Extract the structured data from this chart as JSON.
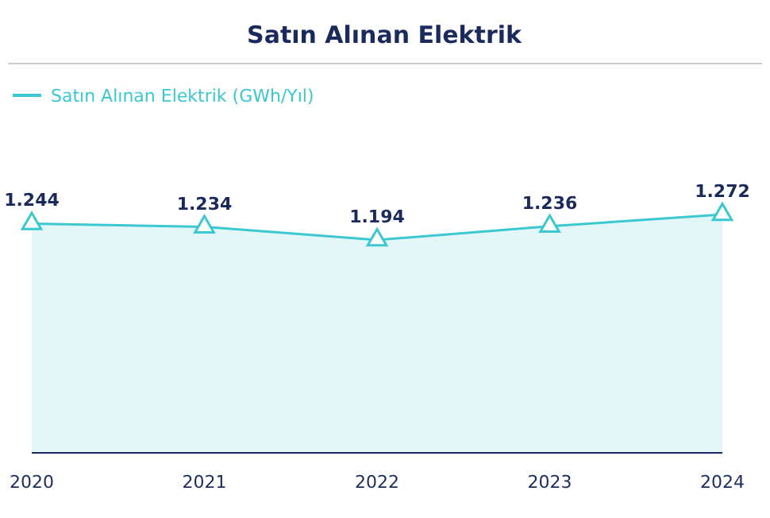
{
  "chart_data": {
    "type": "area",
    "title": "Satın Alınan Elektrik",
    "categories": [
      "2020",
      "2021",
      "2022",
      "2023",
      "2024"
    ],
    "series": [
      {
        "name": "Satın Alınan Elektrik (GWh/Yıl)",
        "color": "#3cc8d0",
        "values": [
          1244,
          1234,
          1194,
          1236,
          1272
        ],
        "value_labels": [
          "1.244",
          "1.234",
          "1.194",
          "1.236",
          "1.272"
        ]
      }
    ],
    "marker": "triangle",
    "legend": "top left"
  }
}
